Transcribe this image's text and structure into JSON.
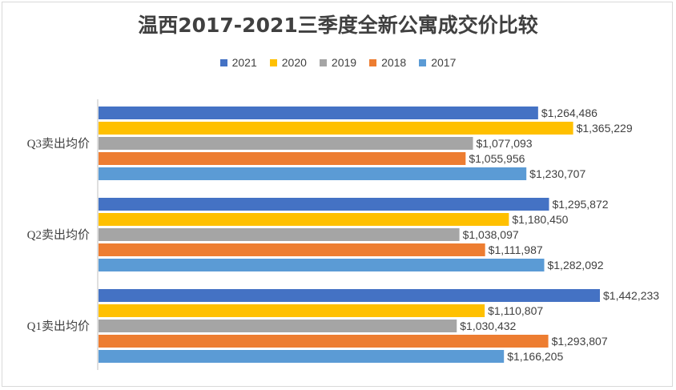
{
  "chart_data": {
    "type": "bar",
    "orientation": "horizontal",
    "title": "温西2017-2021三季度全新公寓成交价比较",
    "categories": [
      "Q3卖出均价",
      "Q2卖出均价",
      "Q1卖出均价"
    ],
    "series": [
      {
        "name": "2021",
        "color": "#4472c4",
        "values": [
          1264486,
          1295872,
          1442233
        ],
        "labels": [
          "$1,264,486",
          "$1,295,872",
          "$1,442,233"
        ]
      },
      {
        "name": "2020",
        "color": "#ffc000",
        "values": [
          1365229,
          1180450,
          1110807
        ],
        "labels": [
          "$1,365,229",
          "$1,180,450",
          "$1,110,807"
        ]
      },
      {
        "name": "2019",
        "color": "#a5a5a5",
        "values": [
          1077093,
          1038097,
          1030432
        ],
        "labels": [
          "$1,077,093",
          "$1,038,097",
          "$1,030,432"
        ]
      },
      {
        "name": "2018",
        "color": "#ed7d31",
        "values": [
          1055956,
          1111987,
          1293807
        ],
        "labels": [
          "$1,055,956",
          "$1,111,987",
          "$1,293,807"
        ]
      },
      {
        "name": "2017",
        "color": "#5b9bd5",
        "values": [
          1230707,
          1282092,
          1166205
        ],
        "labels": [
          "$1,230,707",
          "$1,282,092",
          "$1,166,205"
        ]
      }
    ],
    "legend_position": "top",
    "grid": false,
    "axis_tick_labels_shown": false
  }
}
